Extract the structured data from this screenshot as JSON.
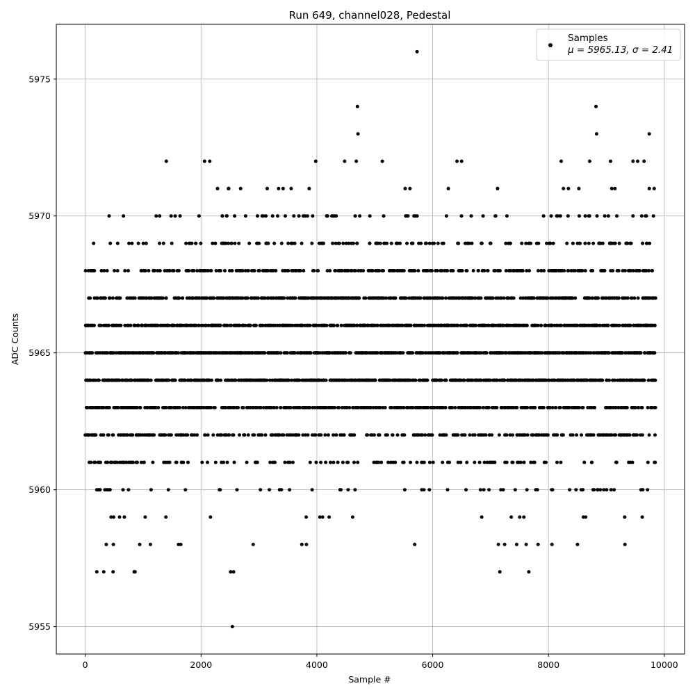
{
  "chart_data": {
    "type": "scatter",
    "title": "Run 649, channel028, Pedestal",
    "xlabel": "Sample #",
    "ylabel": "ADC Counts",
    "xlim": [
      -500,
      10350
    ],
    "ylim": [
      5954,
      5977
    ],
    "xticks": [
      0,
      2000,
      4000,
      6000,
      8000,
      10000
    ],
    "yticks": [
      5955,
      5960,
      5965,
      5970,
      5975
    ],
    "grid": true,
    "legend": {
      "placement": "top-right",
      "series_label": "Samples",
      "stats_label": "μ = 5965.13, σ = 2.41"
    },
    "series": [
      {
        "name": "Samples",
        "color": "#000000",
        "mean": 5965.13,
        "std": 2.41,
        "n_samples": 9850,
        "x_range": [
          0,
          9850
        ],
        "extreme_points": [
          {
            "x": 5730,
            "y": 5976
          },
          {
            "x": 4700,
            "y": 5974
          },
          {
            "x": 8820,
            "y": 5974
          },
          {
            "x": 4710,
            "y": 5973
          },
          {
            "x": 8830,
            "y": 5973
          },
          {
            "x": 9740,
            "y": 5973
          },
          {
            "x": 2540,
            "y": 5955
          },
          {
            "x": 200,
            "y": 5957
          },
          {
            "x": 320,
            "y": 5957
          },
          {
            "x": 480,
            "y": 5957
          },
          {
            "x": 860,
            "y": 5957
          },
          {
            "x": 2510,
            "y": 5957
          },
          {
            "x": 2560,
            "y": 5957
          },
          {
            "x": 7160,
            "y": 5957
          },
          {
            "x": 1400,
            "y": 5972
          },
          {
            "x": 2060,
            "y": 5972
          },
          {
            "x": 2150,
            "y": 5972
          },
          {
            "x": 3980,
            "y": 5972
          },
          {
            "x": 4480,
            "y": 5972
          },
          {
            "x": 4680,
            "y": 5972
          },
          {
            "x": 5130,
            "y": 5972
          },
          {
            "x": 6420,
            "y": 5972
          },
          {
            "x": 6500,
            "y": 5972
          },
          {
            "x": 8220,
            "y": 5972
          },
          {
            "x": 8710,
            "y": 5972
          },
          {
            "x": 9070,
            "y": 5972
          },
          {
            "x": 9460,
            "y": 5972
          },
          {
            "x": 9540,
            "y": 5972
          },
          {
            "x": 9650,
            "y": 5972
          },
          {
            "x": 3740,
            "y": 5958
          },
          {
            "x": 3820,
            "y": 5958
          },
          {
            "x": 5690,
            "y": 5958
          },
          {
            "x": 7450,
            "y": 5958
          },
          {
            "x": 7820,
            "y": 5958
          },
          {
            "x": 8060,
            "y": 5958
          },
          {
            "x": 8500,
            "y": 5958
          }
        ]
      }
    ]
  }
}
